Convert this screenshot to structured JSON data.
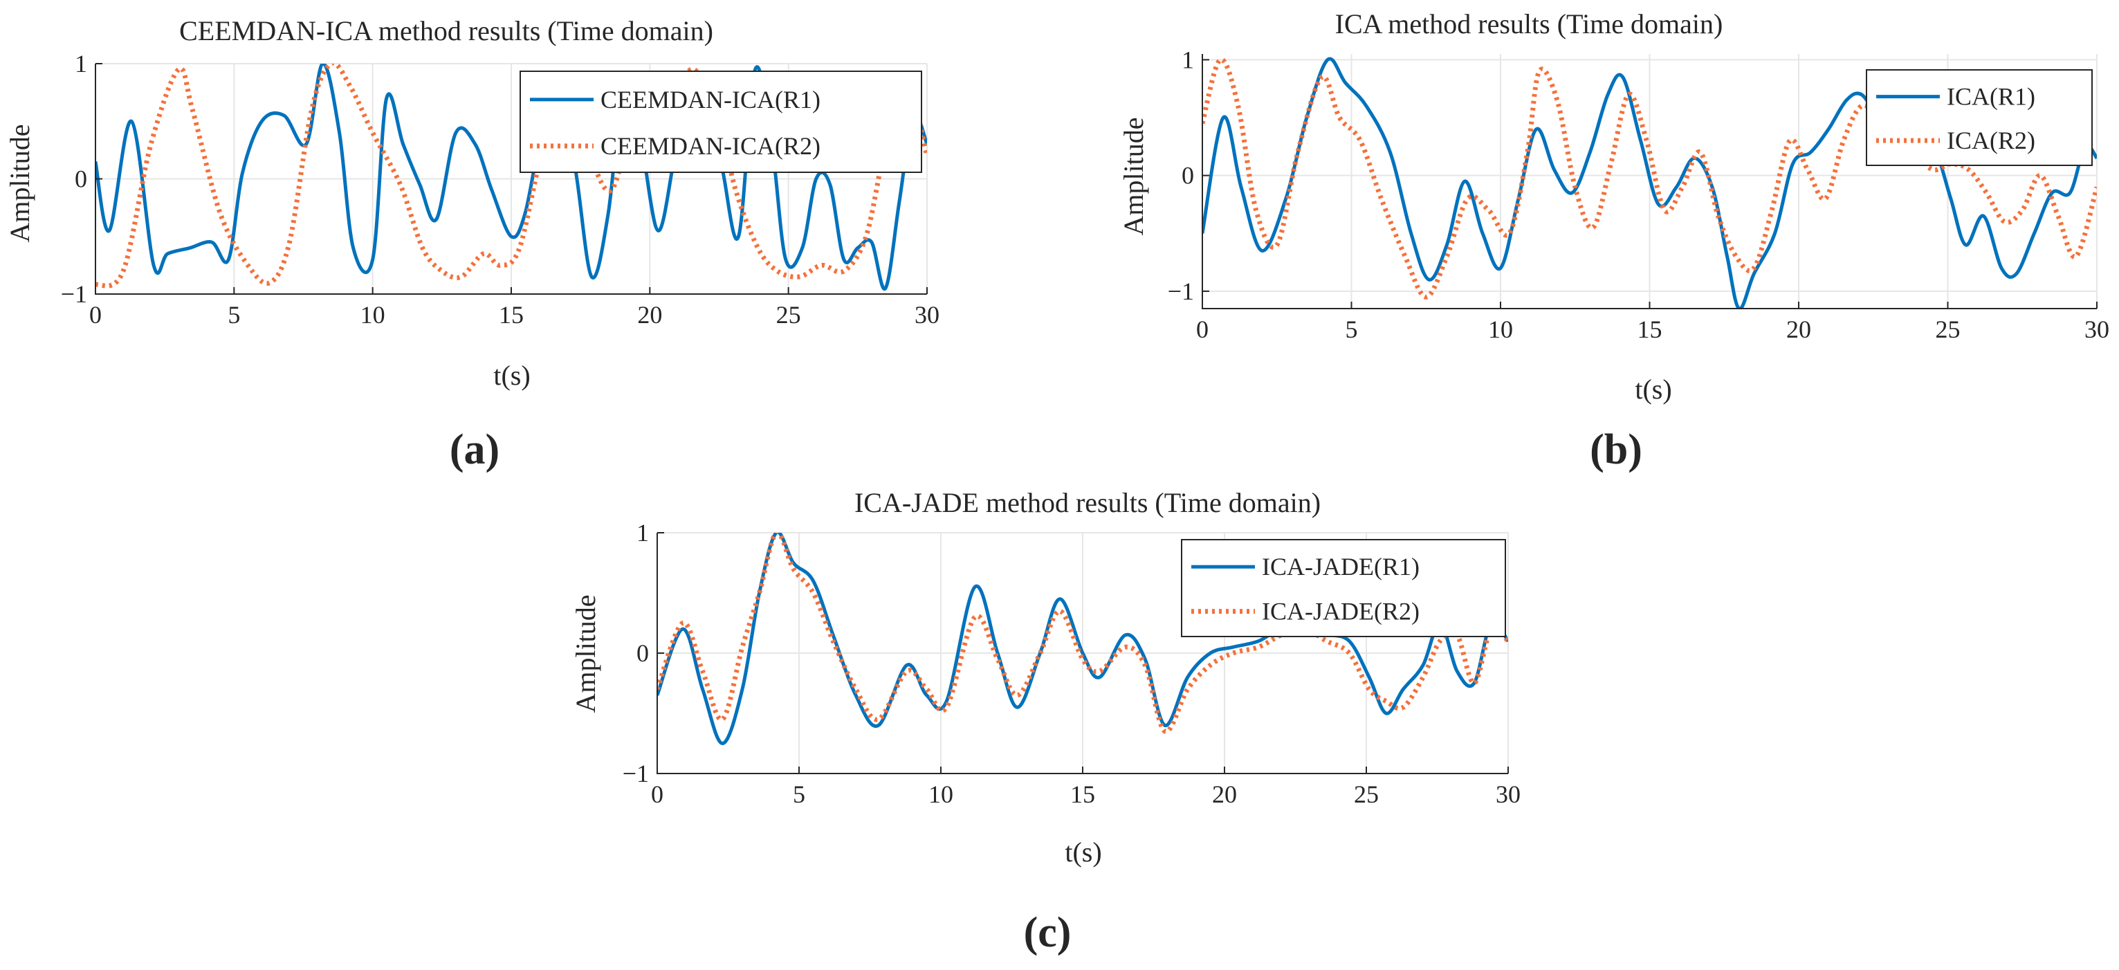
{
  "colors": {
    "r1": "#0072BD",
    "r2": "#F4713B",
    "axis": "#262626",
    "grid": "#e6e6e6"
  },
  "chart_data": [
    {
      "type": "line",
      "panel_label": "(a)",
      "title": "CEEMDAN-ICA method results  (Time domain)",
      "xlabel": "t(s)",
      "ylabel": "Amplitude",
      "xlim": [
        0,
        30
      ],
      "ylim": [
        -1,
        1
      ],
      "xticks": [
        0,
        5,
        10,
        15,
        20,
        25,
        30
      ],
      "yticks": [
        -1,
        0,
        1
      ],
      "ytick_labels": [
        "−1",
        "0",
        "1"
      ],
      "grid": true,
      "legend_position": "top-right",
      "series": [
        {
          "name": "CEEMDAN-ICA(R1)",
          "style": "solid",
          "x": [
            0,
            0.5,
            1.3,
            2.1,
            2.6,
            3.4,
            4.2,
            4.8,
            5.3,
            6.0,
            6.8,
            7.6,
            8.2,
            8.8,
            9.3,
            10.0,
            10.5,
            11.1,
            11.7,
            12.3,
            13.0,
            13.7,
            14.3,
            15.0,
            15.5,
            16.1,
            16.7,
            17.3,
            17.9,
            18.5,
            19.1,
            19.7,
            20.3,
            20.9,
            21.5,
            22.1,
            22.6,
            23.2,
            23.8,
            24.4,
            24.9,
            25.5,
            26.0,
            26.5,
            27.0,
            27.5,
            28.0,
            28.5,
            29.0,
            29.5,
            30.0
          ],
          "values": [
            0.15,
            -0.45,
            0.5,
            -0.75,
            -0.65,
            -0.6,
            -0.55,
            -0.7,
            0.05,
            0.5,
            0.55,
            0.3,
            1.0,
            0.4,
            -0.6,
            -0.7,
            0.7,
            0.3,
            -0.05,
            -0.35,
            0.4,
            0.3,
            -0.1,
            -0.5,
            -0.3,
            0.4,
            0.65,
            0.1,
            -0.85,
            -0.3,
            0.9,
            0.3,
            -0.45,
            0.2,
            0.9,
            0.5,
            0.1,
            -0.5,
            0.95,
            0.3,
            -0.7,
            -0.6,
            0.0,
            -0.05,
            -0.7,
            -0.6,
            -0.55,
            -0.95,
            -0.2,
            0.55,
            0.3
          ]
        },
        {
          "name": "CEEMDAN-ICA(R2)",
          "style": "dotted",
          "x": [
            0,
            1.0,
            2.0,
            3.0,
            3.5,
            4.5,
            5.5,
            6.3,
            7.0,
            7.8,
            8.5,
            9.2,
            10.0,
            11.0,
            11.8,
            12.5,
            13.2,
            14.0,
            14.6,
            15.3,
            16.2,
            17.0,
            17.8,
            18.6,
            19.4,
            20.2,
            21.0,
            21.6,
            22.4,
            23.1,
            23.9,
            24.6,
            25.4,
            26.2,
            27.0,
            27.8,
            28.5,
            29.2,
            30.0
          ],
          "values": [
            -0.92,
            -0.8,
            0.3,
            0.95,
            0.6,
            -0.3,
            -0.75,
            -0.9,
            -0.55,
            0.6,
            1.0,
            0.8,
            0.4,
            -0.05,
            -0.6,
            -0.8,
            -0.85,
            -0.65,
            -0.75,
            -0.6,
            0.3,
            0.5,
            0.2,
            -0.1,
            0.5,
            0.8,
            0.8,
            0.95,
            0.6,
            -0.1,
            -0.6,
            -0.8,
            -0.85,
            -0.75,
            -0.8,
            -0.5,
            0.3,
            0.9,
            0.2
          ]
        }
      ]
    },
    {
      "type": "line",
      "panel_label": "(b)",
      "title": "ICA method results  (Time domain)",
      "xlabel": "t(s)",
      "ylabel": "Amplitude",
      "xlim": [
        0,
        30
      ],
      "ylim": [
        -1.15,
        1.05
      ],
      "xticks": [
        0,
        5,
        10,
        15,
        20,
        25,
        30
      ],
      "yticks": [
        -1,
        0,
        1
      ],
      "ytick_labels": [
        "−1",
        "0",
        "1"
      ],
      "grid": true,
      "legend_position": "top-right",
      "series": [
        {
          "name": "ICA(R1)",
          "style": "solid",
          "x": [
            0,
            0.7,
            1.3,
            2.0,
            2.8,
            3.5,
            4.2,
            4.8,
            5.5,
            6.3,
            7.0,
            7.6,
            8.2,
            8.8,
            9.4,
            10.0,
            10.6,
            11.2,
            11.8,
            12.4,
            13.0,
            13.6,
            14.1,
            14.7,
            15.3,
            15.9,
            16.5,
            17.1,
            17.6,
            18.0,
            18.5,
            19.2,
            19.8,
            20.4,
            21.0,
            21.6,
            22.1,
            22.7,
            23.3,
            23.9,
            24.5,
            25.1,
            25.6,
            26.2,
            26.8,
            27.3,
            27.9,
            28.5,
            29.1,
            29.6,
            30.0
          ],
          "values": [
            -0.5,
            0.5,
            -0.1,
            -0.65,
            -0.2,
            0.5,
            1.0,
            0.8,
            0.6,
            0.2,
            -0.5,
            -0.9,
            -0.6,
            -0.05,
            -0.5,
            -0.8,
            -0.2,
            0.4,
            0.05,
            -0.15,
            0.2,
            0.7,
            0.85,
            0.3,
            -0.25,
            -0.1,
            0.15,
            -0.1,
            -0.7,
            -1.15,
            -0.85,
            -0.5,
            0.1,
            0.2,
            0.4,
            0.65,
            0.7,
            0.5,
            0.45,
            0.5,
            0.3,
            -0.2,
            -0.6,
            -0.35,
            -0.8,
            -0.85,
            -0.5,
            -0.15,
            -0.15,
            0.25,
            0.15
          ]
        },
        {
          "name": "ICA(R2)",
          "style": "dotted",
          "x": [
            0,
            0.6,
            1.2,
            1.8,
            2.5,
            3.2,
            4.0,
            4.6,
            5.3,
            6.0,
            6.8,
            7.5,
            8.2,
            8.9,
            9.6,
            10.3,
            10.9,
            11.3,
            11.9,
            12.5,
            13.1,
            13.7,
            14.3,
            14.9,
            15.5,
            16.1,
            16.7,
            17.3,
            17.9,
            18.5,
            19.1,
            19.7,
            20.3,
            20.9,
            21.5,
            22.1,
            22.7,
            23.3,
            23.9,
            24.5,
            25.1,
            25.7,
            26.3,
            26.9,
            27.5,
            28.1,
            28.7,
            29.3,
            30.0
          ],
          "values": [
            0.45,
            1.0,
            0.6,
            -0.3,
            -0.6,
            0.2,
            0.85,
            0.5,
            0.3,
            -0.2,
            -0.7,
            -1.05,
            -0.7,
            -0.2,
            -0.3,
            -0.5,
            0.2,
            0.9,
            0.65,
            -0.1,
            -0.45,
            0.1,
            0.7,
            0.3,
            -0.3,
            -0.1,
            0.2,
            -0.35,
            -0.7,
            -0.8,
            -0.3,
            0.3,
            0.05,
            -0.2,
            0.3,
            0.6,
            0.5,
            0.4,
            0.2,
            0.05,
            0.1,
            0.05,
            -0.15,
            -0.4,
            -0.3,
            0.0,
            -0.35,
            -0.7,
            -0.1
          ]
        }
      ]
    },
    {
      "type": "line",
      "panel_label": "(c)",
      "title": "ICA-JADE method results  (Time domain)",
      "xlabel": "t(s)",
      "ylabel": "Amplitude",
      "xlim": [
        0,
        30
      ],
      "ylim": [
        -1,
        1
      ],
      "xticks": [
        0,
        5,
        10,
        15,
        20,
        25,
        30
      ],
      "yticks": [
        -1,
        0,
        1
      ],
      "ytick_labels": [
        "−1",
        "0",
        "1"
      ],
      "grid": true,
      "legend_position": "top-right",
      "series": [
        {
          "name": "ICA-JADE(R1)",
          "style": "solid",
          "x": [
            0,
            0.9,
            1.6,
            2.3,
            3.0,
            3.6,
            4.2,
            4.8,
            5.5,
            6.2,
            7.0,
            7.8,
            8.8,
            9.5,
            10.2,
            11.2,
            12.0,
            12.7,
            13.5,
            14.2,
            15.0,
            15.6,
            16.5,
            17.2,
            17.9,
            18.7,
            19.5,
            20.3,
            21.2,
            22.0,
            22.8,
            23.6,
            24.4,
            25.1,
            25.7,
            26.3,
            27.0,
            27.6,
            28.2,
            28.8,
            29.4,
            30.0
          ],
          "values": [
            -0.35,
            0.2,
            -0.3,
            -0.75,
            -0.3,
            0.5,
            1.0,
            0.75,
            0.6,
            0.15,
            -0.35,
            -0.6,
            -0.1,
            -0.35,
            -0.4,
            0.55,
            0.0,
            -0.45,
            0.0,
            0.45,
            0.0,
            -0.2,
            0.15,
            -0.05,
            -0.6,
            -0.2,
            0.0,
            0.05,
            0.1,
            0.2,
            0.15,
            0.15,
            0.1,
            -0.2,
            -0.5,
            -0.3,
            -0.1,
            0.25,
            -0.15,
            -0.25,
            0.25,
            0.1
          ]
        },
        {
          "name": "ICA-JADE(R2)",
          "style": "dotted",
          "x": [
            0,
            0.9,
            1.6,
            2.3,
            3.0,
            3.6,
            4.2,
            4.8,
            5.5,
            6.2,
            7.0,
            7.8,
            8.8,
            9.5,
            10.2,
            11.2,
            12.0,
            12.7,
            13.5,
            14.2,
            15.0,
            15.6,
            16.5,
            17.2,
            17.9,
            18.7,
            19.5,
            20.3,
            21.2,
            22.0,
            22.8,
            23.6,
            24.4,
            25.1,
            25.7,
            26.3,
            27.0,
            27.6,
            28.2,
            28.8,
            29.4,
            30.0
          ],
          "values": [
            -0.3,
            0.25,
            -0.15,
            -0.55,
            0.05,
            0.5,
            1.0,
            0.7,
            0.5,
            0.1,
            -0.3,
            -0.55,
            -0.15,
            -0.3,
            -0.45,
            0.3,
            -0.05,
            -0.35,
            0.0,
            0.35,
            -0.05,
            -0.15,
            0.05,
            -0.1,
            -0.65,
            -0.3,
            -0.1,
            0.0,
            0.05,
            0.15,
            0.2,
            0.1,
            0.0,
            -0.3,
            -0.4,
            -0.45,
            -0.2,
            0.1,
            0.15,
            -0.25,
            0.2,
            0.1
          ]
        }
      ]
    }
  ]
}
